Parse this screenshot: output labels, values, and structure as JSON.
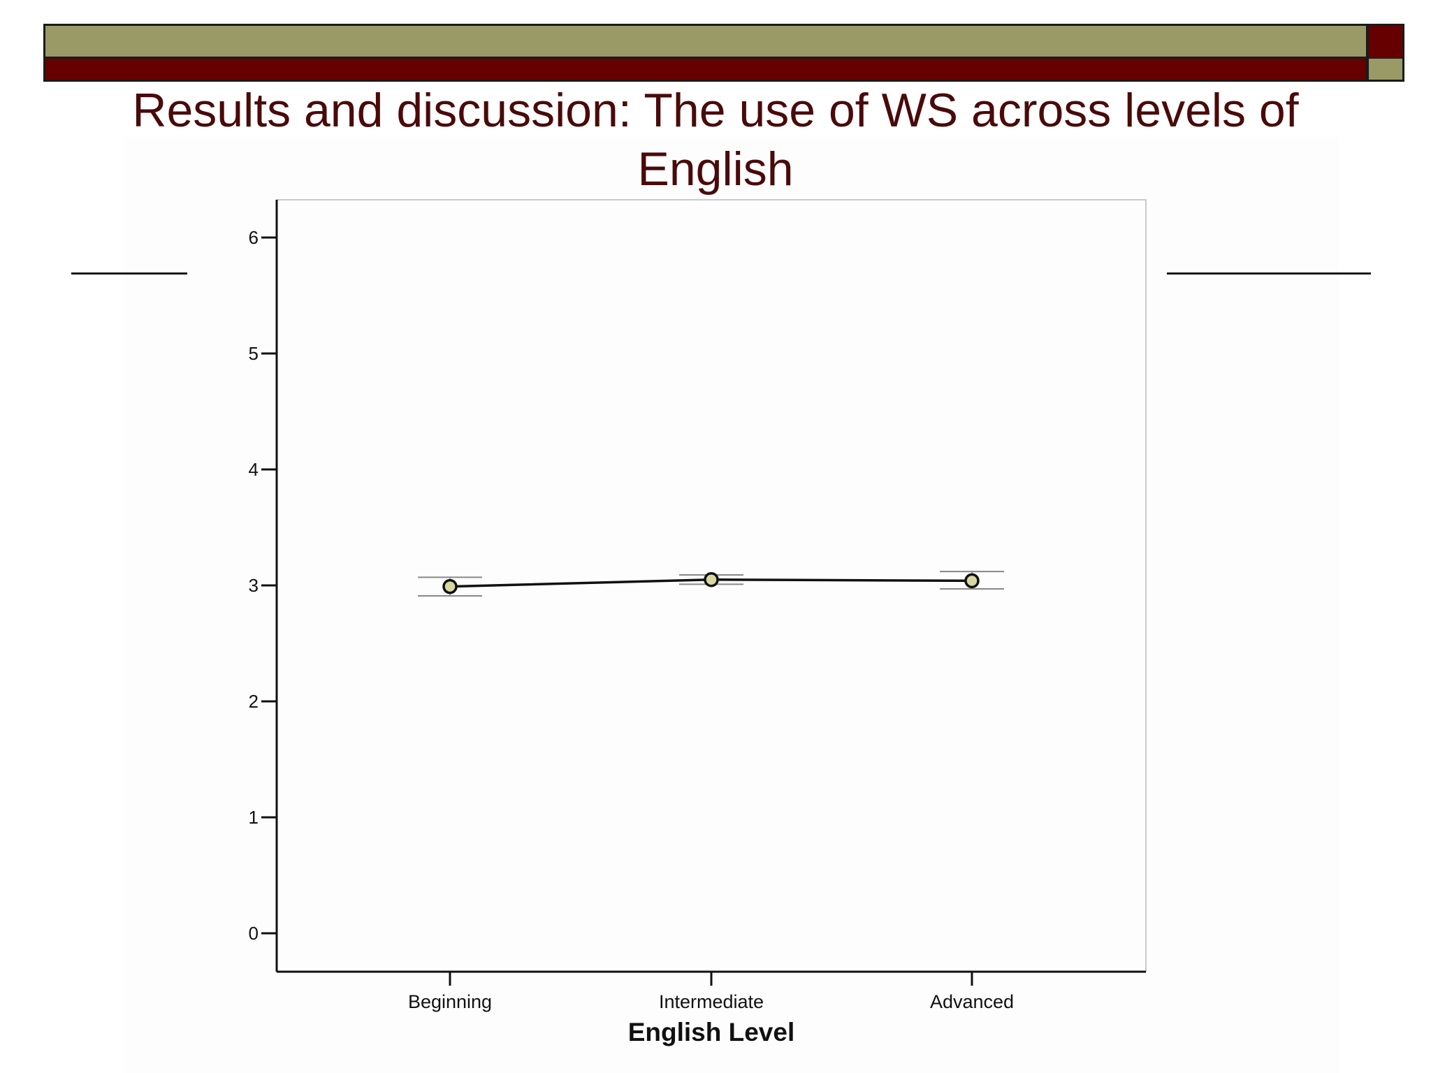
{
  "slide": {
    "title": "Results and discussion: The use of WS across levels of English"
  },
  "chart_data": {
    "type": "line",
    "categories": [
      "Beginning",
      "Intermediate",
      "Advanced"
    ],
    "values": [
      2.99,
      3.05,
      3.04
    ],
    "error_low": [
      2.91,
      3.01,
      2.97
    ],
    "error_high": [
      3.07,
      3.09,
      3.12
    ],
    "xlabel": "English Level",
    "ylabel": "",
    "ylim": [
      0,
      6
    ],
    "yticks": [
      0,
      1,
      2,
      3,
      4,
      5,
      6
    ],
    "grid": false,
    "colors": {
      "marker_fill": "#d8d8a0",
      "line": "#111111",
      "error_bar": "#888888"
    }
  }
}
